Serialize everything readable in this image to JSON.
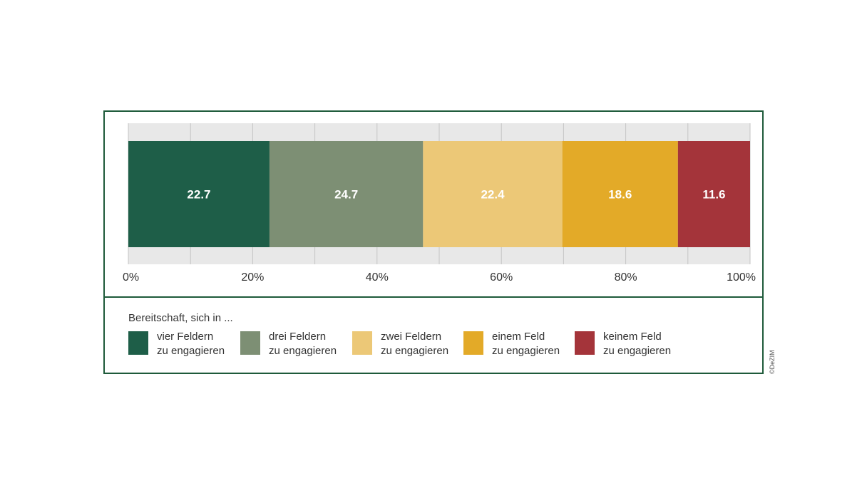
{
  "chart_data": {
    "type": "bar",
    "orientation": "horizontal",
    "stacked": true,
    "x_range": [
      0,
      100
    ],
    "x_ticks": [
      "0%",
      "20%",
      "40%",
      "60%",
      "80%",
      "100%"
    ],
    "grid": true,
    "legend_placement": "bottom",
    "series": [
      {
        "name": "vier Feldern zu engagieren",
        "value": 22.7,
        "label": "22.7",
        "color": "#1e5e48"
      },
      {
        "name": "drei Feldern zu engagieren",
        "value": 24.7,
        "label": "24.7",
        "color": "#7d8f74"
      },
      {
        "name": "zwei Feldern zu engagieren",
        "value": 22.4,
        "label": "22.4",
        "color": "#ecc877"
      },
      {
        "name": "einem Feld zu engagieren",
        "value": 18.6,
        "label": "18.6",
        "color": "#e3aa28"
      },
      {
        "name": "keinem Feld zu engagieren",
        "value": 11.6,
        "label": "11.6",
        "color": "#a4343a"
      }
    ]
  },
  "legend": {
    "title": "Bereitschaft, sich in ...",
    "items": [
      {
        "line1": "vier Feldern",
        "line2": "zu engagieren"
      },
      {
        "line1": "drei Feldern",
        "line2": "zu engagieren"
      },
      {
        "line1": "zwei Feldern",
        "line2": "zu engagieren"
      },
      {
        "line1": "einem Feld",
        "line2": "zu engagieren"
      },
      {
        "line1": "keinem Feld",
        "line2": "zu engagieren"
      }
    ]
  },
  "copyright": "©DeZIM",
  "colors": {
    "frame": "#1e5a3a",
    "grid_band": "#e8e8e8",
    "grid_line": "#c4c4c4"
  }
}
